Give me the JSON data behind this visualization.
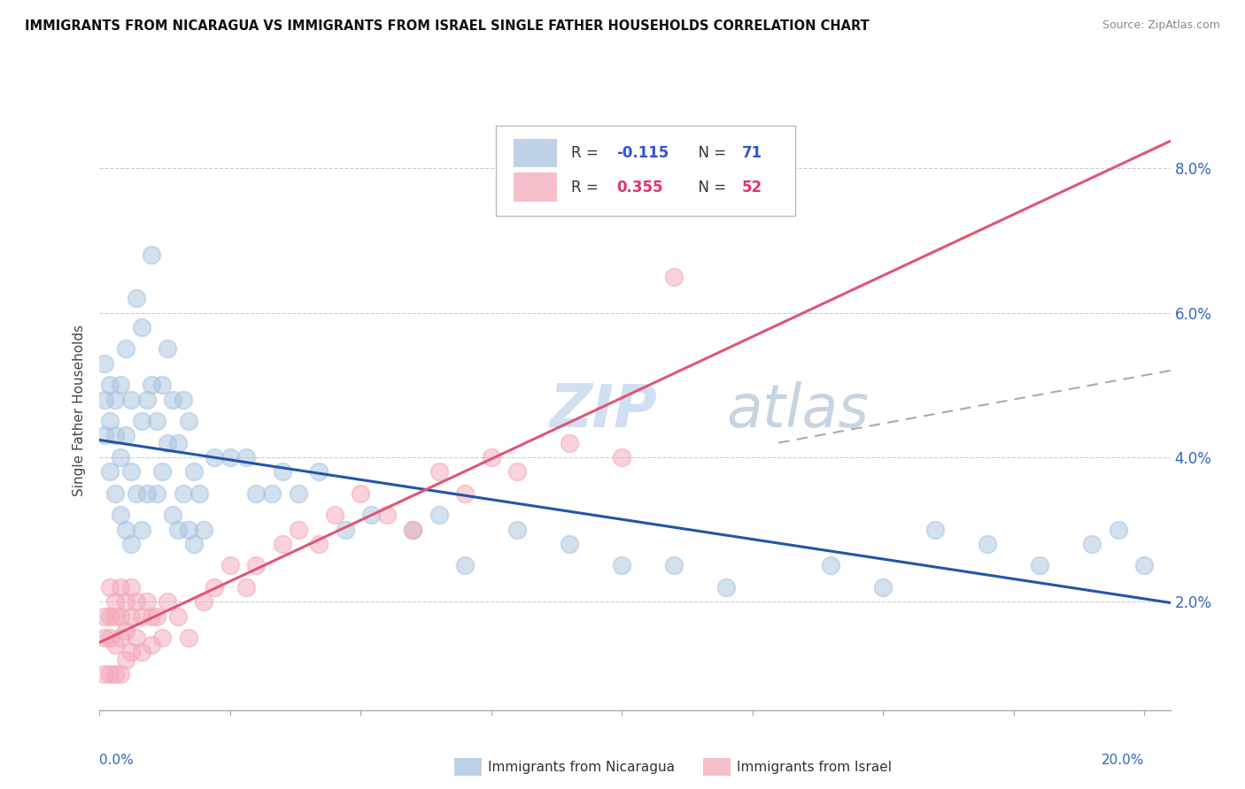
{
  "title": "IMMIGRANTS FROM NICARAGUA VS IMMIGRANTS FROM ISRAEL SINGLE FATHER HOUSEHOLDS CORRELATION CHART",
  "source": "Source: ZipAtlas.com",
  "ylabel": "Single Father Households",
  "legend_nicaragua": "Immigrants from Nicaragua",
  "legend_israel": "Immigrants from Israel",
  "r_nicaragua": -0.115,
  "n_nicaragua": 71,
  "r_israel": 0.355,
  "n_israel": 52,
  "color_nicaragua": "#A8C4E0",
  "color_israel": "#F4A8B8",
  "trendline_nicaragua": "#2255AA",
  "trendline_israel": "#E05575",
  "xlim": [
    0.0,
    0.205
  ],
  "ylim": [
    0.005,
    0.088
  ],
  "yticks": [
    0.02,
    0.04,
    0.06,
    0.08
  ],
  "ytick_labels": [
    "2.0%",
    "4.0%",
    "6.0%",
    "8.0%"
  ],
  "nicaragua_x": [
    0.001,
    0.001,
    0.001,
    0.002,
    0.002,
    0.002,
    0.003,
    0.003,
    0.003,
    0.004,
    0.004,
    0.004,
    0.005,
    0.005,
    0.005,
    0.006,
    0.006,
    0.006,
    0.007,
    0.007,
    0.008,
    0.008,
    0.008,
    0.009,
    0.009,
    0.01,
    0.01,
    0.011,
    0.011,
    0.012,
    0.012,
    0.013,
    0.013,
    0.014,
    0.014,
    0.015,
    0.015,
    0.016,
    0.016,
    0.017,
    0.017,
    0.018,
    0.018,
    0.019,
    0.02,
    0.022,
    0.025,
    0.028,
    0.03,
    0.033,
    0.035,
    0.038,
    0.042,
    0.047,
    0.052,
    0.06,
    0.065,
    0.07,
    0.08,
    0.09,
    0.1,
    0.11,
    0.12,
    0.14,
    0.15,
    0.16,
    0.17,
    0.18,
    0.19,
    0.195,
    0.2
  ],
  "nicaragua_y": [
    0.043,
    0.048,
    0.053,
    0.045,
    0.05,
    0.038,
    0.043,
    0.048,
    0.035,
    0.05,
    0.04,
    0.032,
    0.055,
    0.043,
    0.03,
    0.048,
    0.038,
    0.028,
    0.062,
    0.035,
    0.058,
    0.045,
    0.03,
    0.048,
    0.035,
    0.068,
    0.05,
    0.045,
    0.035,
    0.05,
    0.038,
    0.055,
    0.042,
    0.048,
    0.032,
    0.042,
    0.03,
    0.048,
    0.035,
    0.045,
    0.03,
    0.038,
    0.028,
    0.035,
    0.03,
    0.04,
    0.04,
    0.04,
    0.035,
    0.035,
    0.038,
    0.035,
    0.038,
    0.03,
    0.032,
    0.03,
    0.032,
    0.025,
    0.03,
    0.028,
    0.025,
    0.025,
    0.022,
    0.025,
    0.022,
    0.03,
    0.028,
    0.025,
    0.028,
    0.03,
    0.025
  ],
  "israel_x": [
    0.001,
    0.001,
    0.001,
    0.002,
    0.002,
    0.002,
    0.002,
    0.003,
    0.003,
    0.003,
    0.003,
    0.004,
    0.004,
    0.004,
    0.004,
    0.005,
    0.005,
    0.005,
    0.006,
    0.006,
    0.006,
    0.007,
    0.007,
    0.008,
    0.008,
    0.009,
    0.01,
    0.01,
    0.011,
    0.012,
    0.013,
    0.015,
    0.017,
    0.02,
    0.022,
    0.025,
    0.028,
    0.03,
    0.035,
    0.038,
    0.042,
    0.045,
    0.05,
    0.055,
    0.06,
    0.065,
    0.07,
    0.075,
    0.08,
    0.09,
    0.1,
    0.11
  ],
  "israel_y": [
    0.018,
    0.015,
    0.01,
    0.022,
    0.018,
    0.015,
    0.01,
    0.02,
    0.018,
    0.014,
    0.01,
    0.022,
    0.018,
    0.015,
    0.01,
    0.02,
    0.016,
    0.012,
    0.022,
    0.018,
    0.013,
    0.02,
    0.015,
    0.018,
    0.013,
    0.02,
    0.018,
    0.014,
    0.018,
    0.015,
    0.02,
    0.018,
    0.015,
    0.02,
    0.022,
    0.025,
    0.022,
    0.025,
    0.028,
    0.03,
    0.028,
    0.032,
    0.035,
    0.032,
    0.03,
    0.038,
    0.035,
    0.04,
    0.038,
    0.042,
    0.04,
    0.065
  ]
}
